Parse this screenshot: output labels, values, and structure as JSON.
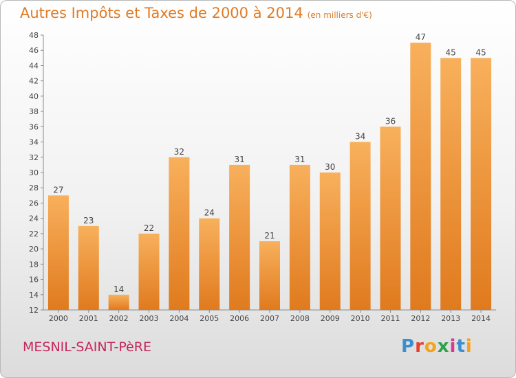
{
  "title": "Autres Impôts et Taxes de 2000 à 2014",
  "unit": "(en milliers d'€)",
  "commune": "MESNIL-SAINT-PèRE",
  "logo": {
    "letters": [
      "P",
      "r",
      "o",
      "x",
      "i",
      "t",
      "i"
    ],
    "colors": [
      "#3a8fd0",
      "#e6412b",
      "#f4a21c",
      "#2ca24a",
      "#d43b8b",
      "#3a8fd0",
      "#f4a21c"
    ]
  },
  "colors": {
    "bar_light": "#f8b05c",
    "bar_dark": "#e07a1e",
    "text": "#e07b25",
    "commune": "#c4265a"
  },
  "chart_data": {
    "type": "bar",
    "categories": [
      "2000",
      "2001",
      "2002",
      "2003",
      "2004",
      "2005",
      "2006",
      "2007",
      "2008",
      "2009",
      "2010",
      "2011",
      "2012",
      "2013",
      "2014"
    ],
    "values": [
      27,
      23,
      14,
      22,
      32,
      24,
      31,
      21,
      31,
      30,
      34,
      36,
      47,
      45,
      45
    ],
    "ylim": [
      12,
      48
    ],
    "yticks": [
      12,
      14,
      16,
      18,
      20,
      22,
      24,
      26,
      28,
      30,
      32,
      34,
      36,
      38,
      40,
      42,
      44,
      46,
      48
    ],
    "grid": false,
    "title": "Autres Impôts et Taxes de 2000 à 2014",
    "xlabel": "",
    "ylabel": ""
  }
}
